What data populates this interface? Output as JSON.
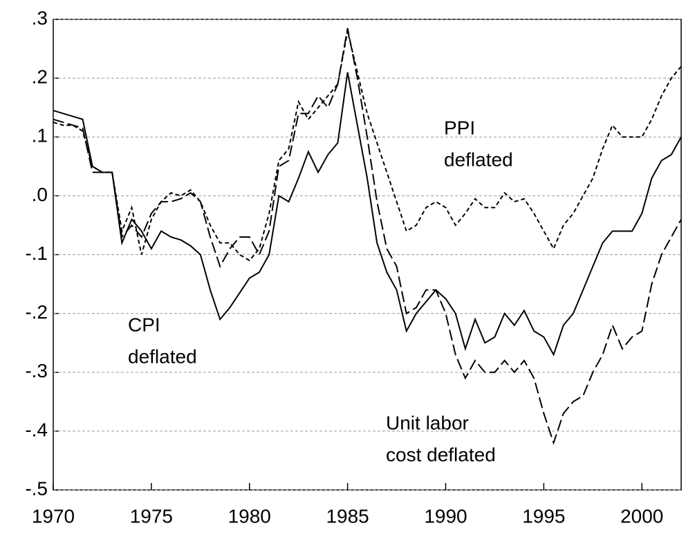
{
  "chart_data": {
    "type": "line",
    "x": [
      1970,
      1970.5,
      1971,
      1971.5,
      1972,
      1972.5,
      1973,
      1973.5,
      1974,
      1974.5,
      1975,
      1975.5,
      1976,
      1976.5,
      1977,
      1977.5,
      1978,
      1978.5,
      1979,
      1979.5,
      1980,
      1980.5,
      1981,
      1981.5,
      1982,
      1982.5,
      1983,
      1983.5,
      1984,
      1984.5,
      1985,
      1985.5,
      1986,
      1986.5,
      1987,
      1987.5,
      1988,
      1988.5,
      1989,
      1989.5,
      1990,
      1990.5,
      1991,
      1991.5,
      1992,
      1992.5,
      1993,
      1993.5,
      1994,
      1994.5,
      1995,
      1995.5,
      1996,
      1996.5,
      1997,
      1997.5,
      1998,
      1998.5,
      1999,
      1999.5,
      2000,
      2000.5,
      2001,
      2001.5,
      2002
    ],
    "series": [
      {
        "name": "CPI deflated",
        "color": "#000000",
        "dash": "solid",
        "values": [
          0.145,
          0.14,
          0.135,
          0.13,
          0.05,
          0.04,
          0.04,
          -0.08,
          -0.04,
          -0.06,
          -0.09,
          -0.06,
          -0.07,
          -0.075,
          -0.085,
          -0.1,
          -0.16,
          -0.21,
          -0.19,
          -0.165,
          -0.14,
          -0.13,
          -0.1,
          0.0,
          -0.01,
          0.03,
          0.075,
          0.04,
          0.07,
          0.09,
          0.21,
          0.12,
          0.03,
          -0.08,
          -0.13,
          -0.16,
          -0.23,
          -0.2,
          -0.18,
          -0.16,
          -0.175,
          -0.2,
          -0.26,
          -0.21,
          -0.25,
          -0.24,
          -0.2,
          -0.22,
          -0.195,
          -0.23,
          -0.24,
          -0.27,
          -0.22,
          -0.2,
          -0.16,
          -0.12,
          -0.08,
          -0.06,
          -0.06,
          -0.06,
          -0.03,
          0.03,
          0.06,
          0.07,
          0.1
        ]
      },
      {
        "name": "PPI deflated",
        "color": "#000000",
        "dash": "short",
        "values": [
          0.125,
          0.12,
          0.12,
          0.11,
          0.05,
          0.04,
          0.04,
          -0.06,
          -0.02,
          -0.1,
          -0.04,
          -0.01,
          0.005,
          0.0,
          0.01,
          -0.01,
          -0.05,
          -0.08,
          -0.08,
          -0.1,
          -0.11,
          -0.09,
          -0.03,
          0.06,
          0.08,
          0.16,
          0.13,
          0.15,
          0.17,
          0.19,
          0.28,
          0.21,
          0.14,
          0.09,
          0.04,
          -0.01,
          -0.06,
          -0.05,
          -0.02,
          -0.01,
          -0.02,
          -0.05,
          -0.03,
          -0.005,
          -0.02,
          -0.02,
          0.005,
          -0.01,
          -0.005,
          -0.03,
          -0.06,
          -0.09,
          -0.05,
          -0.03,
          0.0,
          0.03,
          0.08,
          0.12,
          0.1,
          0.1,
          0.1,
          0.13,
          0.17,
          0.2,
          0.22
        ]
      },
      {
        "name": "Unit labor cost deflated",
        "color": "#000000",
        "dash": "long",
        "values": [
          0.13,
          0.125,
          0.12,
          0.115,
          0.04,
          0.04,
          0.04,
          -0.07,
          -0.05,
          -0.07,
          -0.03,
          -0.01,
          -0.01,
          -0.005,
          0.005,
          -0.01,
          -0.07,
          -0.12,
          -0.09,
          -0.07,
          -0.07,
          -0.1,
          -0.06,
          0.05,
          0.06,
          0.14,
          0.14,
          0.17,
          0.15,
          0.19,
          0.285,
          0.2,
          0.1,
          -0.01,
          -0.09,
          -0.12,
          -0.2,
          -0.19,
          -0.16,
          -0.16,
          -0.2,
          -0.27,
          -0.31,
          -0.28,
          -0.3,
          -0.3,
          -0.28,
          -0.3,
          -0.28,
          -0.31,
          -0.37,
          -0.42,
          -0.37,
          -0.35,
          -0.34,
          -0.3,
          -0.27,
          -0.22,
          -0.26,
          -0.24,
          -0.23,
          -0.15,
          -0.1,
          -0.07,
          -0.04
        ]
      }
    ],
    "annotations": [
      [
        "PPI",
        "deflated"
      ],
      [
        "CPI",
        "deflated"
      ],
      [
        "Unit labor",
        "cost deflated"
      ]
    ],
    "xlim": [
      1970,
      2002
    ],
    "xticks": [
      1970,
      1975,
      1980,
      1985,
      1990,
      1995,
      2000
    ],
    "ylim": [
      -0.5,
      0.3
    ],
    "yticks": [
      {
        "value": -0.5,
        "label": "-.5"
      },
      {
        "value": -0.4,
        "label": "-.4"
      },
      {
        "value": -0.3,
        "label": "-.3"
      },
      {
        "value": -0.2,
        "label": "-.2"
      },
      {
        "value": -0.1,
        "label": "-.1"
      },
      {
        "value": 0.0,
        "label": ".0"
      },
      {
        "value": 0.1,
        "label": ".1"
      },
      {
        "value": 0.2,
        "label": ".2"
      },
      {
        "value": 0.3,
        "label": ".3"
      }
    ],
    "grid": true
  }
}
